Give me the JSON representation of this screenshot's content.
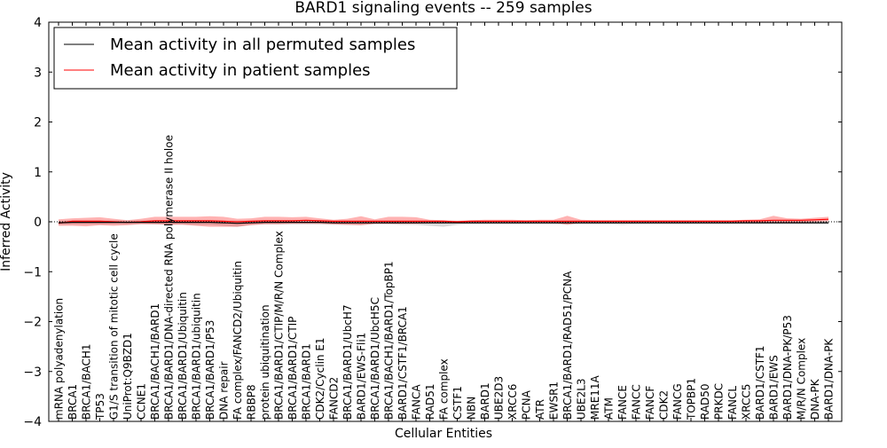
{
  "chart_data": {
    "type": "line",
    "title": "BARD1 signaling events -- 259 samples",
    "xlabel": "Cellular Entities",
    "ylabel": "Inferred Activity",
    "ylim": [
      -4,
      4
    ],
    "yticks": [
      {
        "value": 4,
        "label": "4"
      },
      {
        "value": 3,
        "label": "3"
      },
      {
        "value": 2,
        "label": "2"
      },
      {
        "value": 1,
        "label": "1"
      },
      {
        "value": 0,
        "label": "0"
      },
      {
        "value": -1,
        "label": "−1"
      },
      {
        "value": -2,
        "label": "−2"
      },
      {
        "value": -3,
        "label": "−3"
      },
      {
        "value": -4,
        "label": "−4"
      }
    ],
    "legend_location": "upper-left",
    "categories": [
      "mRNA polyadenylation",
      "BRCA1",
      "BRCA1/BACH1",
      "TP53",
      "G1/S transition of mitotic cell cycle",
      "UniProt:Q9BZD1",
      "CCNE1",
      "BRCA1/BACH1/BARD1",
      "BRCA1/BARD1/DNA-directed RNA polymerase II holoe",
      "BRCA1/BARD1/Ubiquitin",
      "BRCA1/BARD1/ubiquitin",
      "BRCA1/BARD1/P53",
      "DNA repair",
      "FA complex/FANCD2/Ubiquitin",
      "RBBP8",
      "protein ubiquitination",
      "BRCA1/BARD1/CTIP/M/R/N Complex",
      "BRCA1/BARD1/CTIP",
      "BRCA1/BARD1",
      "CDK2/Cyclin E1",
      "FANCD2",
      "BRCA1/BARD1/UbcH7",
      "BARD1/EWS-Fli1",
      "BRCA1/BARD1/UbcH5C",
      "BRCA1/BACH1/BARD1/TopBP1",
      "BARD1/CSTF1/BRCA1",
      "FANCA",
      "RAD51",
      "FA complex",
      "CSTF1",
      "NBN",
      "BARD1",
      "UBE2D3",
      "XRCC6",
      "PCNA",
      "ATR",
      "EWSR1",
      "BRCA1/BARD1/RAD51/PCNA",
      "UBE2L3",
      "MRE11A",
      "ATM",
      "FANCE",
      "FANCC",
      "FANCF",
      "CDK2",
      "FANCG",
      "TOPBP1",
      "RAD50",
      "PRKDC",
      "FANCL",
      "XRCC5",
      "BARD1/CSTF1",
      "BARD1/EWS",
      "BARD1/DNA-PK/P53",
      "M/R/N Complex",
      "DNA-PK",
      "BARD1/DNA-PK"
    ],
    "series": [
      {
        "name": "Mean activity in all permuted samples",
        "color": "#000000",
        "values": [
          -0.02,
          -0.01,
          -0.01,
          -0.01,
          -0.01,
          -0.01,
          -0.01,
          -0.01,
          -0.01,
          -0.01,
          -0.01,
          -0.01,
          -0.02,
          -0.03,
          -0.02,
          -0.01,
          -0.01,
          -0.01,
          -0.01,
          -0.01,
          -0.02,
          -0.02,
          -0.02,
          -0.02,
          -0.02,
          -0.02,
          -0.02,
          -0.02,
          -0.02,
          -0.02,
          -0.02,
          -0.02,
          -0.02,
          -0.02,
          -0.02,
          -0.02,
          -0.02,
          -0.02,
          -0.02,
          -0.02,
          -0.02,
          -0.02,
          -0.02,
          -0.02,
          -0.02,
          -0.02,
          -0.02,
          -0.02,
          -0.02,
          -0.02,
          -0.02,
          -0.02,
          -0.02,
          -0.02,
          -0.02,
          -0.02,
          -0.02
        ],
        "band_low": [
          -0.06,
          -0.05,
          -0.05,
          -0.05,
          -0.05,
          -0.05,
          -0.04,
          -0.05,
          -0.05,
          -0.05,
          -0.06,
          -0.06,
          -0.08,
          -0.1,
          -0.06,
          -0.05,
          -0.05,
          -0.05,
          -0.05,
          -0.05,
          -0.06,
          -0.06,
          -0.06,
          -0.05,
          -0.05,
          -0.06,
          -0.06,
          -0.08,
          -0.1,
          -0.06,
          -0.05,
          -0.05,
          -0.05,
          -0.05,
          -0.05,
          -0.05,
          -0.05,
          -0.05,
          -0.05,
          -0.05,
          -0.05,
          -0.06,
          -0.05,
          -0.05,
          -0.05,
          -0.05,
          -0.05,
          -0.05,
          -0.05,
          -0.05,
          -0.05,
          -0.05,
          -0.05,
          -0.05,
          -0.05,
          -0.05,
          -0.05
        ],
        "band_high": [
          0.02,
          0.03,
          0.03,
          0.03,
          0.03,
          0.03,
          0.03,
          0.03,
          0.03,
          0.03,
          0.03,
          0.03,
          0.02,
          0.02,
          0.02,
          0.03,
          0.03,
          0.03,
          0.03,
          0.03,
          0.02,
          0.02,
          0.02,
          0.02,
          0.02,
          0.02,
          0.02,
          0.02,
          0.02,
          0.02,
          0.02,
          0.02,
          0.02,
          0.02,
          0.02,
          0.02,
          0.02,
          0.02,
          0.02,
          0.02,
          0.02,
          0.02,
          0.02,
          0.02,
          0.02,
          0.02,
          0.02,
          0.02,
          0.02,
          0.02,
          0.02,
          0.02,
          0.02,
          0.02,
          0.02,
          0.02,
          0.02
        ]
      },
      {
        "name": "Mean activity in patient samples",
        "color": "#ff0000",
        "values": [
          -0.03,
          0.01,
          0.01,
          0.01,
          0.0,
          -0.01,
          0.0,
          0.02,
          0.02,
          0.02,
          0.02,
          0.02,
          0.01,
          0.0,
          0.01,
          0.02,
          0.02,
          0.02,
          0.03,
          0.02,
          0.01,
          0.01,
          0.01,
          0.01,
          0.01,
          0.01,
          0.01,
          0.01,
          0.01,
          0.0,
          0.01,
          0.01,
          0.01,
          0.01,
          0.01,
          0.01,
          0.01,
          0.01,
          0.01,
          0.01,
          0.01,
          0.01,
          0.01,
          0.01,
          0.01,
          0.01,
          0.01,
          0.01,
          0.01,
          0.01,
          0.02,
          0.02,
          0.03,
          0.03,
          0.03,
          0.04,
          0.05
        ],
        "band_low": [
          -0.08,
          -0.08,
          -0.09,
          -0.07,
          -0.08,
          -0.07,
          -0.05,
          -0.05,
          -0.06,
          -0.06,
          -0.08,
          -0.1,
          -0.1,
          -0.1,
          -0.07,
          -0.05,
          -0.05,
          -0.04,
          -0.04,
          -0.04,
          -0.05,
          -0.06,
          -0.07,
          -0.04,
          -0.04,
          -0.04,
          -0.04,
          -0.03,
          -0.03,
          -0.02,
          -0.01,
          -0.01,
          -0.01,
          -0.01,
          -0.01,
          -0.01,
          -0.02,
          -0.06,
          -0.02,
          -0.01,
          -0.01,
          -0.01,
          -0.01,
          -0.01,
          -0.01,
          -0.01,
          -0.01,
          -0.01,
          -0.01,
          -0.01,
          -0.01,
          -0.01,
          -0.02,
          -0.01,
          -0.01,
          0.0,
          0.01
        ],
        "band_high": [
          0.05,
          0.07,
          0.08,
          0.09,
          0.06,
          0.03,
          0.06,
          0.1,
          0.1,
          0.1,
          0.1,
          0.11,
          0.1,
          0.06,
          0.07,
          0.1,
          0.1,
          0.09,
          0.1,
          0.07,
          0.04,
          0.06,
          0.11,
          0.05,
          0.1,
          0.1,
          0.09,
          0.04,
          0.03,
          0.02,
          0.03,
          0.04,
          0.04,
          0.04,
          0.03,
          0.04,
          0.04,
          0.12,
          0.04,
          0.03,
          0.03,
          0.03,
          0.03,
          0.03,
          0.03,
          0.03,
          0.03,
          0.03,
          0.03,
          0.03,
          0.04,
          0.05,
          0.12,
          0.07,
          0.06,
          0.08,
          0.1
        ]
      }
    ]
  }
}
